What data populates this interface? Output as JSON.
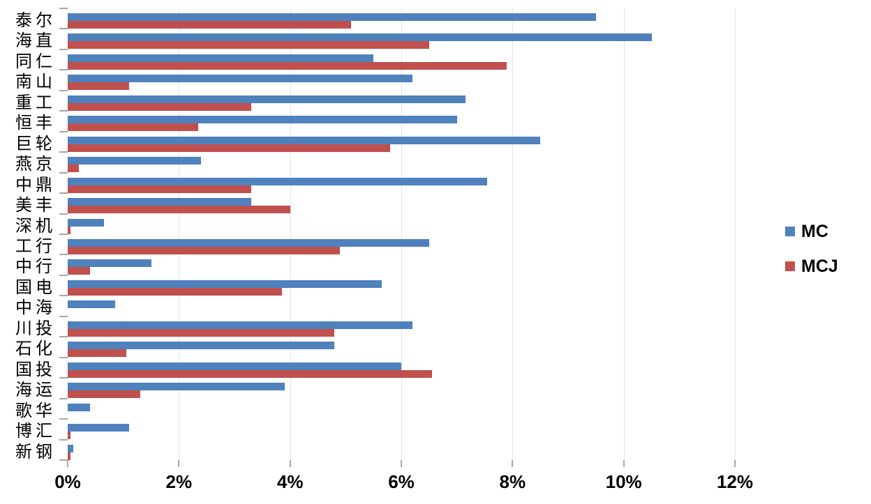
{
  "chart_data": {
    "type": "bar",
    "orientation": "horizontal",
    "title": "",
    "xlabel": "",
    "ylabel": "",
    "categories": [
      "泰尔",
      "海直",
      "同仁",
      "南山",
      "重工",
      "恒丰",
      "巨轮",
      "燕京",
      "中鼎",
      "美丰",
      "深机",
      "工行",
      "中行",
      "国电",
      "中海",
      "川投",
      "石化",
      "国投",
      "海运",
      "歌华",
      "博汇",
      "新钢"
    ],
    "series": [
      {
        "name": "MC",
        "color": "#4F81BD",
        "values": [
          9.5,
          10.5,
          5.5,
          6.2,
          7.15,
          7.0,
          8.5,
          2.4,
          7.55,
          3.3,
          0.65,
          6.5,
          1.5,
          5.65,
          0.85,
          6.2,
          4.8,
          6.0,
          3.9,
          0.4,
          1.1,
          0.1
        ]
      },
      {
        "name": "MCJ",
        "color": "#C0504D",
        "values": [
          5.1,
          6.5,
          7.9,
          1.1,
          3.3,
          2.35,
          5.8,
          0.2,
          3.3,
          4.0,
          0.05,
          4.9,
          0.4,
          3.85,
          0,
          4.8,
          1.05,
          6.55,
          1.3,
          0,
          0.05,
          0.05
        ]
      }
    ],
    "x_axis": {
      "min": 0,
      "max": 12,
      "step": 2,
      "tick_labels": [
        "0%",
        "2%",
        "4%",
        "6%",
        "8%",
        "10%",
        "12%"
      ]
    },
    "grid": true,
    "legend_position": "right"
  },
  "legend": {
    "items": [
      {
        "label": "MC",
        "color": "#4F81BD"
      },
      {
        "label": "MCJ",
        "color": "#C0504D"
      }
    ]
  },
  "colors": {
    "series_mc": "#4F81BD",
    "series_mcj": "#C0504D",
    "gridline": "#DCE5F0",
    "axis": "#A6A6A6",
    "text": "#000000",
    "background": "#FFFFFF"
  }
}
